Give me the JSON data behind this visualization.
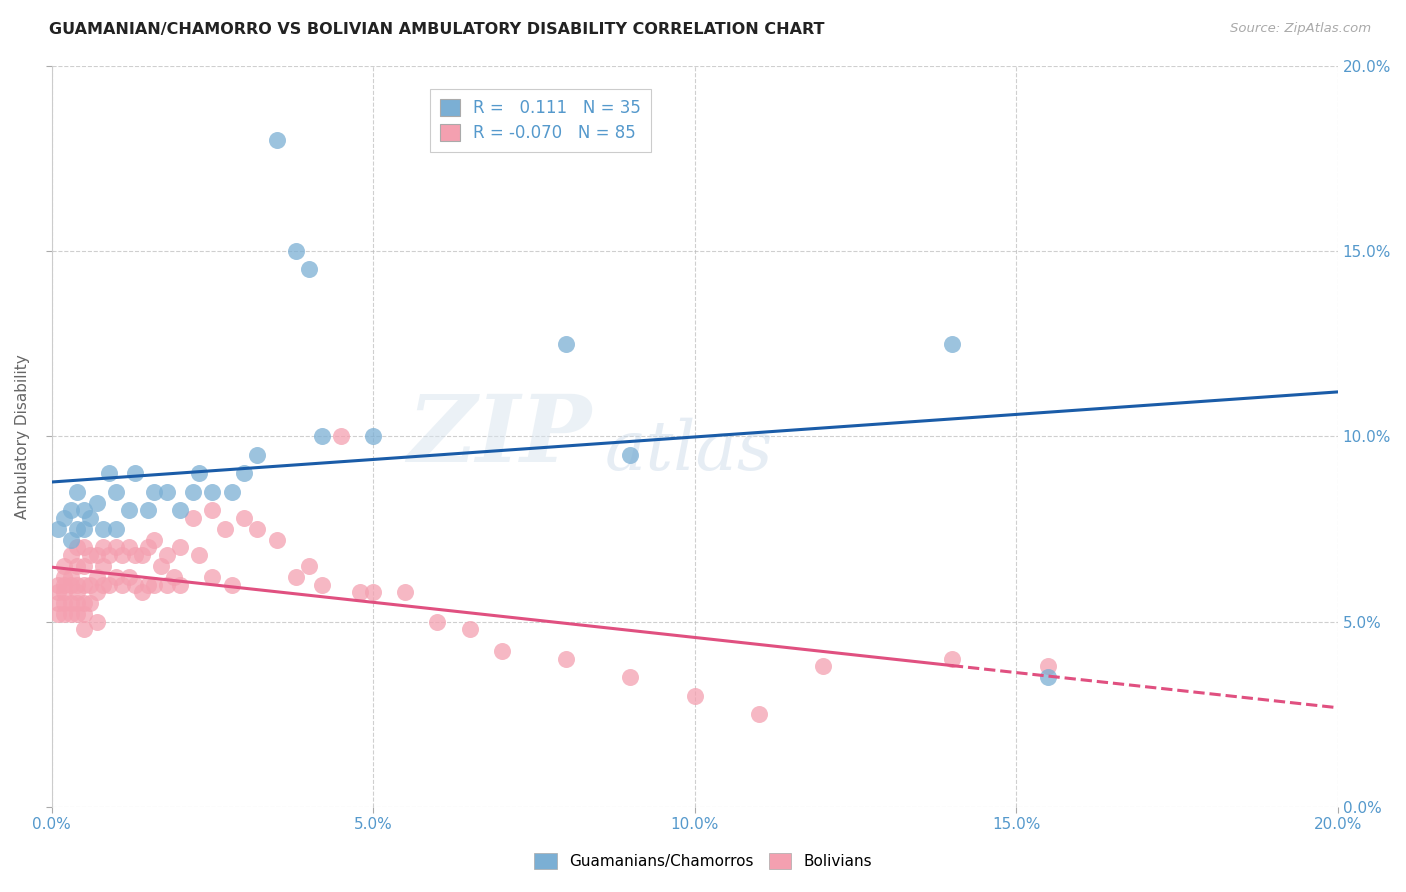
{
  "title": "GUAMANIAN/CHAMORRO VS BOLIVIAN AMBULATORY DISABILITY CORRELATION CHART",
  "source": "Source: ZipAtlas.com",
  "ylabel": "Ambulatory Disability",
  "xlim": [
    0.0,
    0.2
  ],
  "ylim": [
    0.0,
    0.2
  ],
  "xticks": [
    0.0,
    0.05,
    0.1,
    0.15,
    0.2
  ],
  "yticks": [
    0.0,
    0.05,
    0.1,
    0.15,
    0.2
  ],
  "color_blue": "#7BAFD4",
  "color_pink": "#F4A0B0",
  "trendline_blue": "#1A5CA8",
  "trendline_pink": "#E05080",
  "R_blue": 0.111,
  "N_blue": 35,
  "R_pink": -0.07,
  "N_pink": 85,
  "legend_label_blue": "Guamanians/Chamorros",
  "legend_label_pink": "Bolivians",
  "watermark_zip": "ZIP",
  "watermark_atlas": "atlas",
  "background_color": "#FFFFFF",
  "grid_color": "#BBBBBB",
  "tick_color": "#5599CC",
  "blue_x": [
    0.001,
    0.002,
    0.003,
    0.003,
    0.004,
    0.004,
    0.005,
    0.005,
    0.006,
    0.007,
    0.008,
    0.009,
    0.01,
    0.01,
    0.012,
    0.013,
    0.015,
    0.016,
    0.018,
    0.02,
    0.022,
    0.023,
    0.025,
    0.028,
    0.03,
    0.032,
    0.035,
    0.038,
    0.04,
    0.042,
    0.05,
    0.08,
    0.09,
    0.14,
    0.155
  ],
  "blue_y": [
    0.075,
    0.078,
    0.072,
    0.08,
    0.085,
    0.075,
    0.08,
    0.075,
    0.078,
    0.082,
    0.075,
    0.09,
    0.085,
    0.075,
    0.08,
    0.09,
    0.08,
    0.085,
    0.085,
    0.08,
    0.085,
    0.09,
    0.085,
    0.085,
    0.09,
    0.095,
    0.18,
    0.15,
    0.145,
    0.1,
    0.1,
    0.125,
    0.095,
    0.125,
    0.035
  ],
  "pink_x": [
    0.001,
    0.001,
    0.001,
    0.001,
    0.002,
    0.002,
    0.002,
    0.002,
    0.002,
    0.002,
    0.003,
    0.003,
    0.003,
    0.003,
    0.003,
    0.004,
    0.004,
    0.004,
    0.004,
    0.004,
    0.004,
    0.005,
    0.005,
    0.005,
    0.005,
    0.005,
    0.005,
    0.006,
    0.006,
    0.006,
    0.007,
    0.007,
    0.007,
    0.007,
    0.008,
    0.008,
    0.008,
    0.009,
    0.009,
    0.01,
    0.01,
    0.011,
    0.011,
    0.012,
    0.012,
    0.013,
    0.013,
    0.014,
    0.014,
    0.015,
    0.015,
    0.016,
    0.016,
    0.017,
    0.018,
    0.018,
    0.019,
    0.02,
    0.02,
    0.022,
    0.023,
    0.025,
    0.025,
    0.027,
    0.028,
    0.03,
    0.032,
    0.035,
    0.038,
    0.04,
    0.042,
    0.045,
    0.048,
    0.05,
    0.055,
    0.06,
    0.065,
    0.07,
    0.08,
    0.09,
    0.1,
    0.11,
    0.12,
    0.14,
    0.155
  ],
  "pink_y": [
    0.06,
    0.055,
    0.058,
    0.052,
    0.065,
    0.06,
    0.058,
    0.055,
    0.062,
    0.052,
    0.068,
    0.06,
    0.055,
    0.062,
    0.052,
    0.07,
    0.065,
    0.058,
    0.055,
    0.06,
    0.052,
    0.07,
    0.065,
    0.06,
    0.055,
    0.052,
    0.048,
    0.068,
    0.06,
    0.055,
    0.068,
    0.062,
    0.058,
    0.05,
    0.07,
    0.065,
    0.06,
    0.068,
    0.06,
    0.07,
    0.062,
    0.068,
    0.06,
    0.07,
    0.062,
    0.068,
    0.06,
    0.068,
    0.058,
    0.07,
    0.06,
    0.072,
    0.06,
    0.065,
    0.068,
    0.06,
    0.062,
    0.07,
    0.06,
    0.078,
    0.068,
    0.08,
    0.062,
    0.075,
    0.06,
    0.078,
    0.075,
    0.072,
    0.062,
    0.065,
    0.06,
    0.1,
    0.058,
    0.058,
    0.058,
    0.05,
    0.048,
    0.042,
    0.04,
    0.035,
    0.03,
    0.025,
    0.038,
    0.04,
    0.038
  ]
}
